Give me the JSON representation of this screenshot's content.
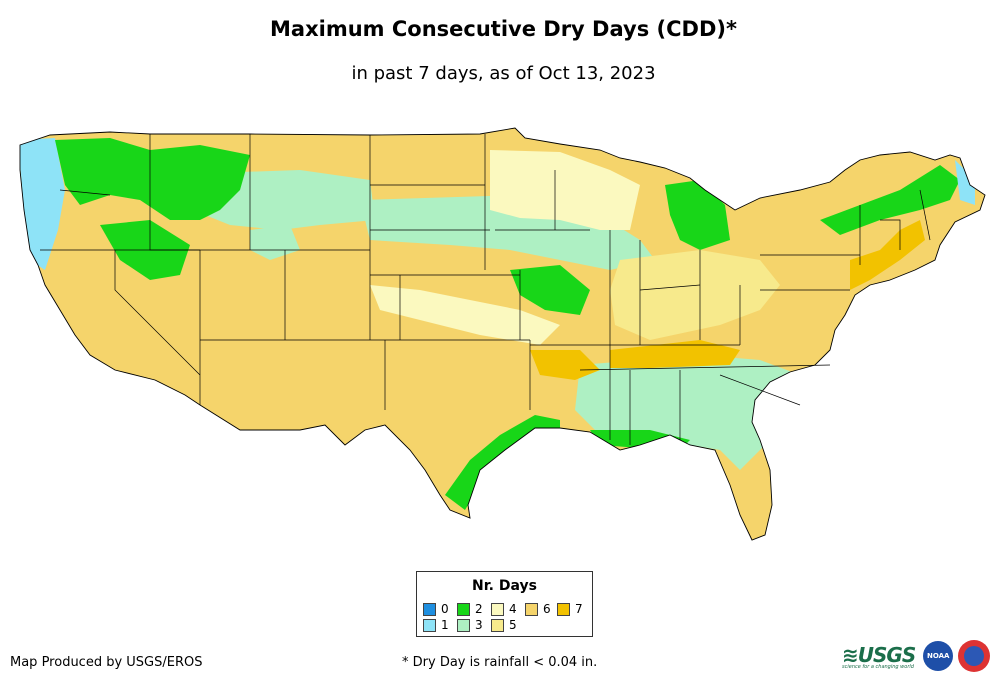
{
  "title": "Maximum Consecutive Dry Days (CDD)*",
  "subtitle": "in past 7 days, as of Oct 13, 2023",
  "legend": {
    "title": "Nr. Days",
    "items": [
      {
        "label": "0",
        "color": "#1f8fe0"
      },
      {
        "label": "1",
        "color": "#8ee3f7"
      },
      {
        "label": "2",
        "color": "#18d618"
      },
      {
        "label": "3",
        "color": "#aef0c3"
      },
      {
        "label": "4",
        "color": "#fbf9bf"
      },
      {
        "label": "5",
        "color": "#f7ea8c"
      },
      {
        "label": "6",
        "color": "#f5d46b"
      },
      {
        "label": "7",
        "color": "#f2c200"
      }
    ]
  },
  "credit": "Map Produced by USGS/EROS",
  "footnote": "* Dry Day is rainfall < 0.04 in.",
  "logos": {
    "usgs": "USGS",
    "usgs_tagline": "science for a changing world",
    "noaa": "NOAA"
  },
  "map_regions": [
    {
      "name": "pacific-northwest-coast",
      "days": 1
    },
    {
      "name": "idaho-montana-highlands",
      "days": 2
    },
    {
      "name": "northern-plains",
      "days": 6
    },
    {
      "name": "upper-midwest",
      "days": 4
    },
    {
      "name": "central-plains",
      "days": 3
    },
    {
      "name": "southwest",
      "days": 6
    },
    {
      "name": "texas-gulf-coast",
      "days": 2
    },
    {
      "name": "southeast",
      "days": 3
    },
    {
      "name": "northeast",
      "days": 6
    },
    {
      "name": "michigan",
      "days": 2
    },
    {
      "name": "new-england-maine",
      "days": 2
    }
  ]
}
